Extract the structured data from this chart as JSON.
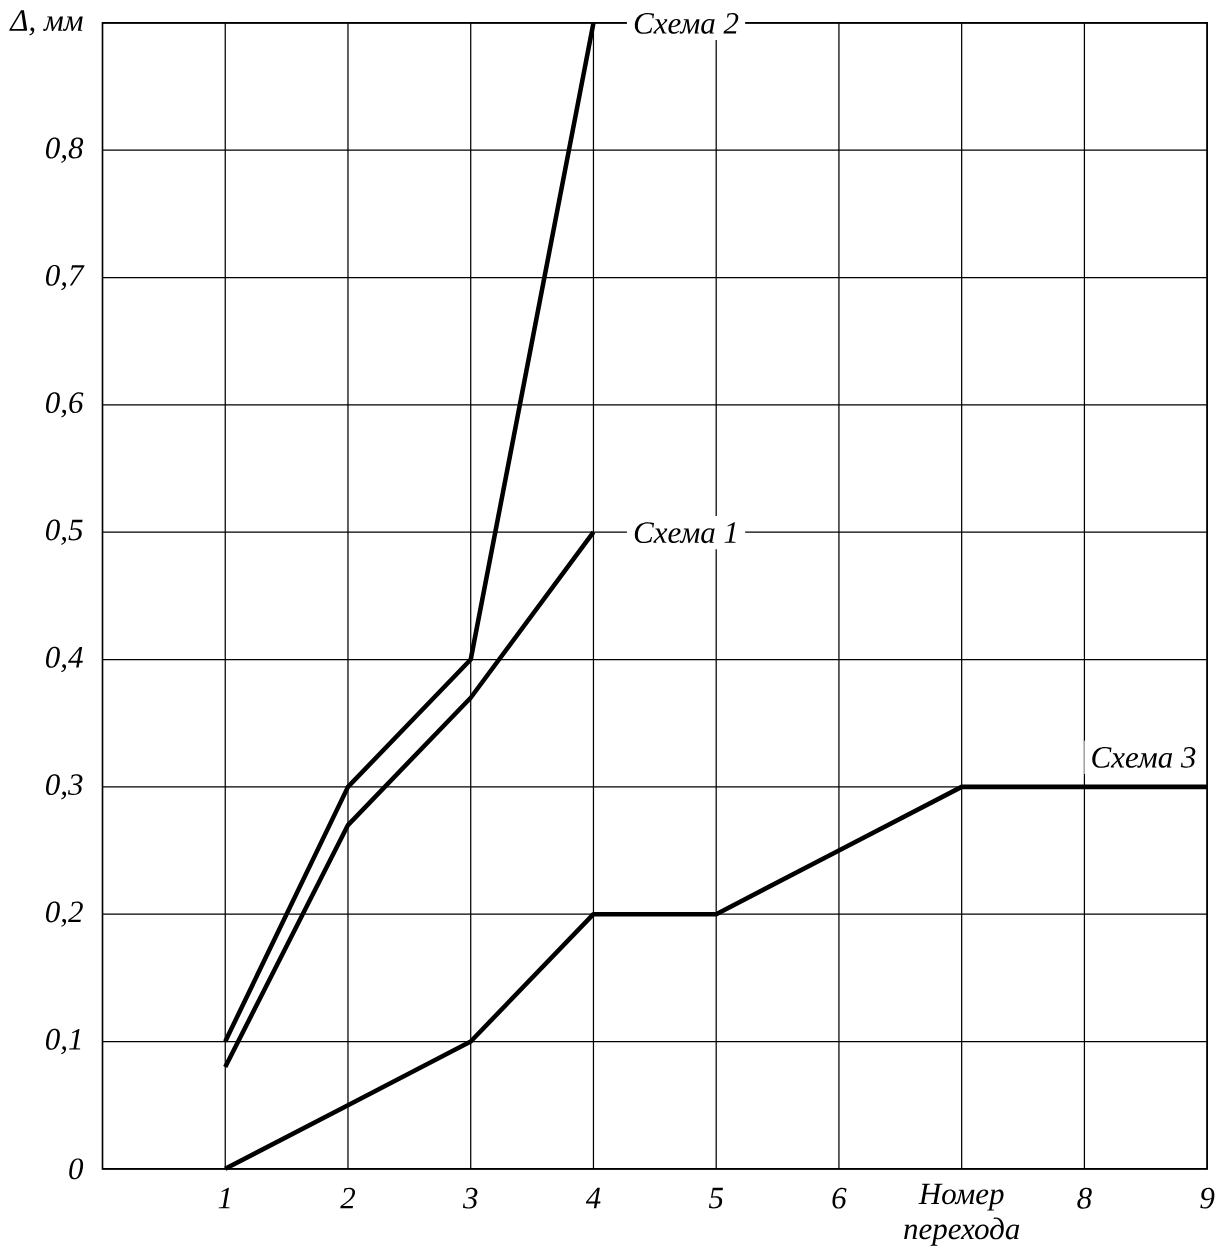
{
  "chart_data": {
    "type": "line",
    "xlabel": "Номер перехода",
    "ylabel": "Δ, мм",
    "x": [
      1,
      2,
      3,
      4,
      5,
      6,
      7,
      8,
      9
    ],
    "series": [
      {
        "name": "Схема 1",
        "color": "#000000",
        "x": [
          1,
          2,
          3,
          4
        ],
        "values": [
          0.08,
          0.27,
          0.37,
          0.5
        ]
      },
      {
        "name": "Схема 2",
        "color": "#000000",
        "x": [
          1,
          2,
          3,
          4
        ],
        "values": [
          0.1,
          0.3,
          0.4,
          0.9
        ]
      },
      {
        "name": "Схема 3",
        "color": "#000000",
        "values": [
          0,
          0.05,
          0.1,
          0.2,
          0.2,
          0.25,
          0.3,
          0.3,
          0.3
        ]
      }
    ],
    "xlim": [
      0,
      9
    ],
    "ylim": [
      0,
      0.9
    ],
    "xticks": [
      1,
      2,
      3,
      4,
      5,
      6,
      {
        "value": 7,
        "label": null
      },
      8,
      9
    ],
    "yticks": [
      {
        "value": 0,
        "label": "0"
      },
      {
        "value": 0.1,
        "label": "0,1"
      },
      {
        "value": 0.2,
        "label": "0,2"
      },
      {
        "value": 0.3,
        "label": "0,3"
      },
      {
        "value": 0.4,
        "label": "0,4"
      },
      {
        "value": 0.5,
        "label": "0,5"
      },
      {
        "value": 0.6,
        "label": "0,6"
      },
      {
        "value": 0.7,
        "label": "0,7"
      },
      {
        "value": 0.8,
        "label": "0,8"
      },
      {
        "value": 0.9,
        "label": null
      }
    ],
    "grid": true,
    "marker": "none",
    "line_style": "solid"
  }
}
